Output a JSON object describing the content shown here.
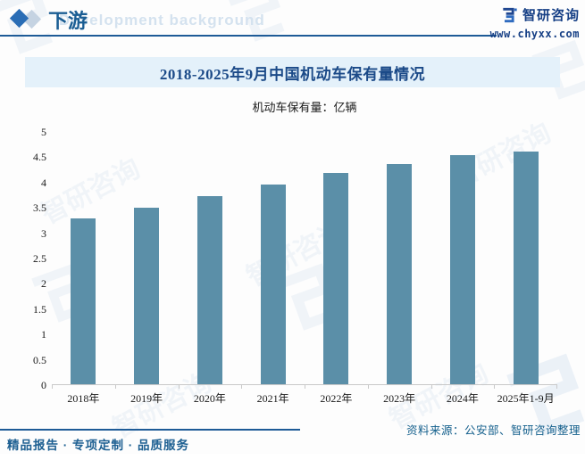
{
  "header": {
    "section_title": "下游",
    "watermark_en": "Development background",
    "brand_name": "智研咨询",
    "brand_site": "www.chyxx.com"
  },
  "watermark": {
    "brand_text": "智研咨询"
  },
  "chart": {
    "title": "2018-2025年9月中国机动车保有量情况",
    "legend": "机动车保有量：亿辆"
  },
  "chart_data": {
    "type": "bar",
    "title": "2018-2025年9月中国机动车保有量情况",
    "series_label": "机动车保有量：亿辆",
    "categories": [
      "2018年",
      "2019年",
      "2020年",
      "2021年",
      "2022年",
      "2023年",
      "2024年",
      "2025年1-9月"
    ],
    "values": [
      3.27,
      3.48,
      3.72,
      3.95,
      4.17,
      4.35,
      4.53,
      4.6
    ],
    "unit": "亿辆",
    "ylim": [
      0,
      5
    ],
    "yticks": [
      0,
      0.5,
      1,
      1.5,
      2,
      2.5,
      3,
      3.5,
      4,
      4.5,
      5
    ],
    "bar_color": "#5b8fa8",
    "grid": false,
    "legend_position": "top-center"
  },
  "footer": {
    "source": "资料来源：公安部、智研咨询整理",
    "tagline": "精品报告 · 专项定制 · 品质服务"
  },
  "colors": {
    "accent_blue": "#1e5b97",
    "title_navy": "#1b4a88",
    "bar_fill": "#5b8fa8",
    "band_bg": "#e4f1fa"
  }
}
